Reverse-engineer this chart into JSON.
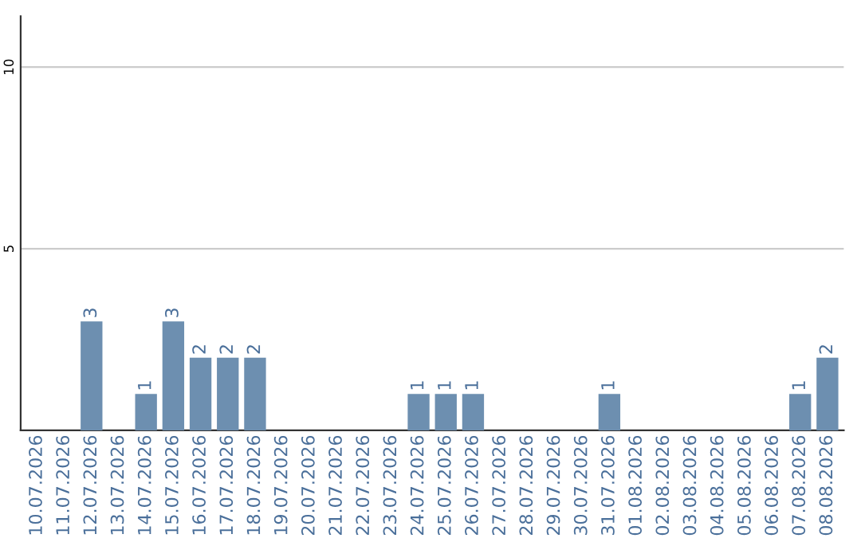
{
  "chart_data": {
    "type": "bar",
    "categories": [
      "10.07.2026",
      "11.07.2026",
      "12.07.2026",
      "13.07.2026",
      "14.07.2026",
      "15.07.2026",
      "16.07.2026",
      "17.07.2026",
      "18.07.2026",
      "19.07.2026",
      "20.07.2026",
      "21.07.2026",
      "22.07.2026",
      "23.07.2026",
      "24.07.2026",
      "25.07.2026",
      "26.07.2026",
      "27.07.2026",
      "28.07.2026",
      "29.07.2026",
      "30.07.2026",
      "31.07.2026",
      "01.08.2026",
      "02.08.2026",
      "03.08.2026",
      "04.08.2026",
      "05.08.2026",
      "06.08.2026",
      "07.08.2026",
      "08.08.2026"
    ],
    "values": [
      0,
      0,
      3,
      0,
      1,
      3,
      2,
      2,
      2,
      0,
      0,
      0,
      0,
      0,
      1,
      1,
      1,
      0,
      0,
      0,
      0,
      1,
      0,
      0,
      0,
      0,
      0,
      0,
      1,
      2
    ],
    "value_labels": [
      null,
      null,
      "3",
      null,
      "1",
      "3",
      "2",
      "2",
      "2",
      null,
      null,
      null,
      null,
      null,
      "1",
      "1",
      "1",
      null,
      null,
      null,
      null,
      "1",
      null,
      null,
      null,
      null,
      null,
      null,
      "1",
      "2"
    ],
    "color": "#6d8fb0",
    "ylim": [
      0,
      11.4
    ],
    "yticks": [
      5,
      10
    ],
    "grid": "y",
    "legend": false
  }
}
